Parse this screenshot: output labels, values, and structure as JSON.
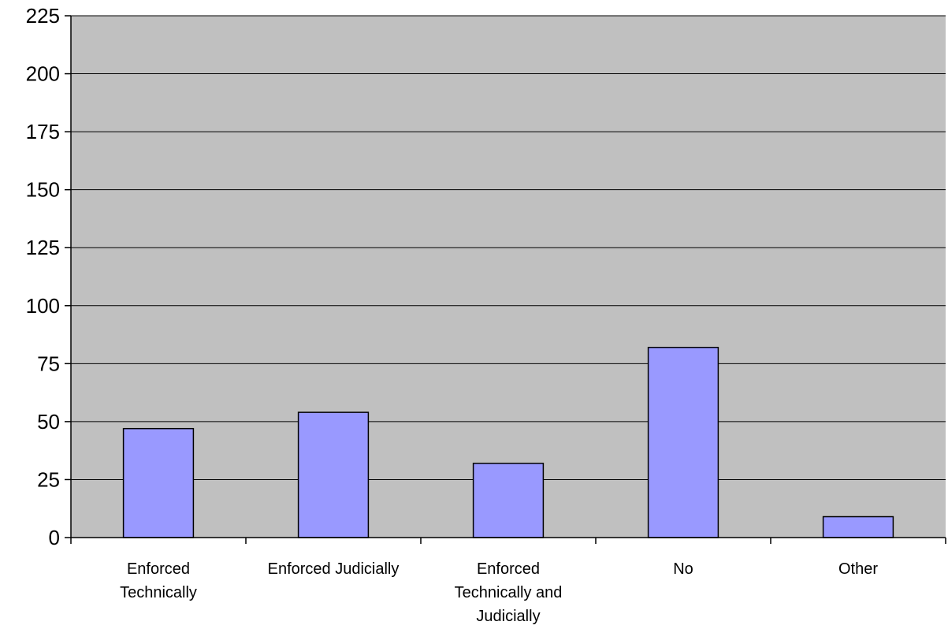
{
  "chart_data": {
    "type": "bar",
    "categories": [
      [
        "Enforced",
        "Technically"
      ],
      [
        "Enforced Judicially"
      ],
      [
        "Enforced",
        "Technically and",
        "Judicially"
      ],
      [
        "No"
      ],
      [
        "Other"
      ]
    ],
    "values": [
      47,
      54,
      32,
      82,
      9
    ],
    "y_ticks": [
      "0",
      "25",
      "50",
      "75",
      "100",
      "125",
      "150",
      "175",
      "200",
      "225"
    ],
    "ylim": [
      0,
      225
    ],
    "grid": true,
    "legend": "none",
    "title": "",
    "xlabel": "",
    "ylabel": "",
    "colors": {
      "plot_background": "#c0c0c0",
      "bar_fill": "#9999ff",
      "bar_stroke": "#000000",
      "gridline": "#000000"
    }
  }
}
